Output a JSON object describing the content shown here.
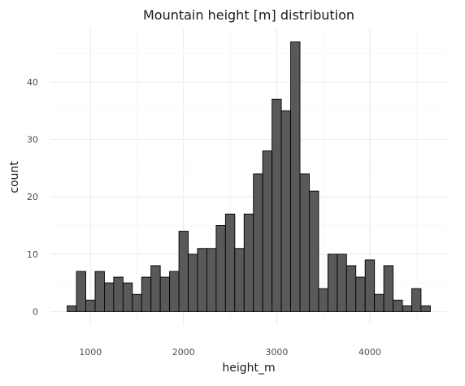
{
  "chart_data": {
    "type": "bar",
    "title": "Mountain height [m] distribution",
    "xlabel": "height_m",
    "ylabel": "count",
    "bin_width": 100,
    "bins": [
      {
        "x": 800,
        "count": 1
      },
      {
        "x": 900,
        "count": 7
      },
      {
        "x": 1000,
        "count": 2
      },
      {
        "x": 1100,
        "count": 7
      },
      {
        "x": 1200,
        "count": 5
      },
      {
        "x": 1300,
        "count": 6
      },
      {
        "x": 1400,
        "count": 5
      },
      {
        "x": 1500,
        "count": 3
      },
      {
        "x": 1600,
        "count": 6
      },
      {
        "x": 1700,
        "count": 8
      },
      {
        "x": 1800,
        "count": 6
      },
      {
        "x": 1900,
        "count": 7
      },
      {
        "x": 2000,
        "count": 14
      },
      {
        "x": 2100,
        "count": 10
      },
      {
        "x": 2200,
        "count": 11
      },
      {
        "x": 2300,
        "count": 11
      },
      {
        "x": 2400,
        "count": 15
      },
      {
        "x": 2500,
        "count": 17
      },
      {
        "x": 2600,
        "count": 11
      },
      {
        "x": 2700,
        "count": 17
      },
      {
        "x": 2800,
        "count": 24
      },
      {
        "x": 2900,
        "count": 28
      },
      {
        "x": 3000,
        "count": 37
      },
      {
        "x": 3100,
        "count": 35
      },
      {
        "x": 3200,
        "count": 47
      },
      {
        "x": 3300,
        "count": 24
      },
      {
        "x": 3400,
        "count": 21
      },
      {
        "x": 3500,
        "count": 4
      },
      {
        "x": 3600,
        "count": 10
      },
      {
        "x": 3700,
        "count": 10
      },
      {
        "x": 3800,
        "count": 8
      },
      {
        "x": 3900,
        "count": 6
      },
      {
        "x": 4000,
        "count": 9
      },
      {
        "x": 4100,
        "count": 3
      },
      {
        "x": 4200,
        "count": 8
      },
      {
        "x": 4300,
        "count": 2
      },
      {
        "x": 4400,
        "count": 1
      },
      {
        "x": 4500,
        "count": 4
      },
      {
        "x": 4600,
        "count": 1
      }
    ],
    "x_ticks": [
      {
        "value": 1000,
        "label": "1000"
      },
      {
        "value": 2000,
        "label": "2000"
      },
      {
        "value": 3000,
        "label": "3000"
      },
      {
        "value": 4000,
        "label": "4000"
      }
    ],
    "y_ticks": [
      {
        "value": 0,
        "label": "0"
      },
      {
        "value": 10,
        "label": "10"
      },
      {
        "value": 20,
        "label": "20"
      },
      {
        "value": 30,
        "label": "30"
      },
      {
        "value": 40,
        "label": "40"
      }
    ],
    "xlim": [
      570,
      4830
    ],
    "ylim": [
      -2.35,
      49.35
    ],
    "grid": true,
    "legend": "none"
  }
}
